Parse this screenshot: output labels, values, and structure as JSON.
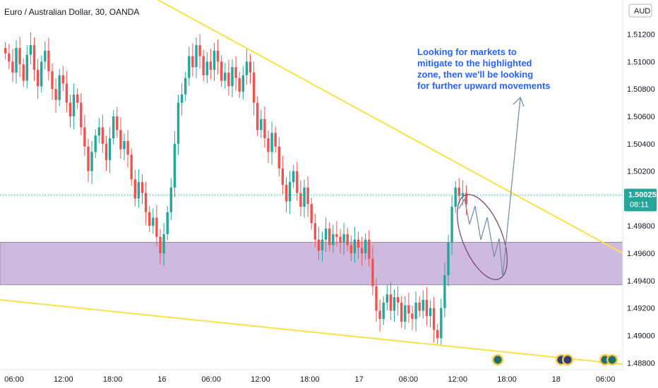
{
  "header": {
    "symbol_title": "Euro / Australian Dollar, 30, OANDA",
    "currency_badge": "AUD"
  },
  "note": {
    "lines": [
      "Looking for markets to",
      "mitigate to the highlighted",
      "zone, then we'll be looking",
      "for further upward movements"
    ],
    "color": "#2962ff"
  },
  "current_price": {
    "value": "1.50025",
    "countdown": "08:11",
    "color": "#26a69a"
  },
  "colors": {
    "up": "#26a69a",
    "down": "#ef5350",
    "trendline": "#f7e24a",
    "zone_fill": "#c9b2dc",
    "zone_border": "#8b8f9a",
    "projection": "#7a8fa6",
    "ellipse": "#7a4a7a"
  },
  "chart_data": {
    "type": "candlestick",
    "symbol": "EUR/AUD",
    "interval": "30",
    "source": "OANDA",
    "y_axis": {
      "ticks": [
        "1.51200",
        "1.51000",
        "1.50800",
        "1.50600",
        "1.50400",
        "1.50200",
        "1.49800",
        "1.49600",
        "1.49400",
        "1.49200",
        "1.49000",
        "1.48800"
      ],
      "ylim": [
        1.4875,
        1.5145
      ]
    },
    "x_axis": {
      "ticks": [
        "06:00",
        "12:00",
        "18:00",
        "16",
        "06:00",
        "12:00",
        "18:00",
        "17",
        "06:00",
        "12:00",
        "18:00",
        "18",
        "06:00"
      ]
    },
    "zone": {
      "top": 1.4968,
      "bottom": 1.4937
    },
    "trendlines": [
      {
        "name": "upper",
        "from": [
          0.0,
          1.5208
        ],
        "to": [
          1.0,
          1.496
        ]
      },
      {
        "name": "lower",
        "from": [
          0.0,
          1.4926
        ],
        "to": [
          1.0,
          1.4879
        ]
      }
    ],
    "closes": [
      1.5106,
      1.51,
      1.5092,
      1.511,
      1.5098,
      1.5086,
      1.5105,
      1.5112,
      1.5094,
      1.5082,
      1.51,
      1.5108,
      1.5093,
      1.508,
      1.5072,
      1.509,
      1.5084,
      1.507,
      1.506,
      1.5076,
      1.507,
      1.5052,
      1.5038,
      1.502,
      1.5034,
      1.5046,
      1.5052,
      1.504,
      1.5028,
      1.5044,
      1.506,
      1.505,
      1.5036,
      1.5042,
      1.5032,
      1.5014,
      1.5,
      1.5012,
      1.5004,
      1.499,
      1.498,
      1.4986,
      1.4972,
      1.496,
      1.4974,
      1.499,
      1.5008,
      1.504,
      1.507,
      1.5076,
      1.5088,
      1.5104,
      1.5096,
      1.5112,
      1.5104,
      1.509,
      1.51,
      1.5094,
      1.5108,
      1.51,
      1.5086,
      1.5092,
      1.5082,
      1.5096,
      1.5088,
      1.5078,
      1.509,
      1.51,
      1.5092,
      1.507,
      1.505,
      1.5058,
      1.5044,
      1.5034,
      1.5048,
      1.5038,
      1.5022,
      1.501,
      1.4998,
      1.5012,
      1.502,
      1.5004,
      1.4994,
      1.5008,
      1.4996,
      1.4982,
      1.497,
      1.4962,
      1.497,
      1.4978,
      1.4966,
      1.4974,
      1.4972,
      1.4968,
      1.4974,
      1.4966,
      1.496,
      1.497,
      1.4964,
      1.496,
      1.497,
      1.4956,
      1.4936,
      1.4918,
      1.4912,
      1.4924,
      1.493,
      1.4918,
      1.4928,
      1.4924,
      1.491,
      1.4922,
      1.4916,
      1.4912,
      1.4924,
      1.4918,
      1.4926,
      1.4914,
      1.492,
      1.4904,
      1.4898,
      1.492,
      1.4944,
      1.4968,
      1.4994,
      1.5008,
      1.5002,
      1.5004,
      1.4996
    ]
  }
}
